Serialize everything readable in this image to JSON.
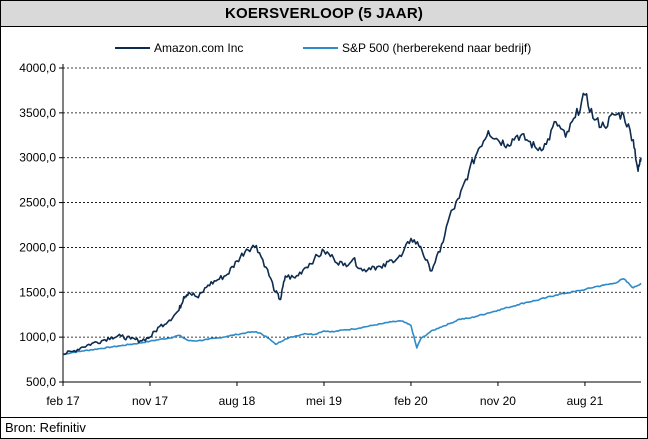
{
  "title": "KOERSVERLOOP (5 JAAR)",
  "source": "Bron: Refinitiv",
  "colors": {
    "amazon": "#0e2c4f",
    "sp500": "#2e8bc9",
    "grid": "#000000"
  },
  "chart_data": {
    "type": "line",
    "ylim": [
      500,
      4000
    ],
    "yticks": [
      "500,0",
      "1000,0",
      "1500,0",
      "2000,0",
      "2500,0",
      "3000,0",
      "3500,0",
      "4000,0"
    ],
    "ytick_values": [
      500,
      1000,
      1500,
      2000,
      2500,
      3000,
      3500,
      4000
    ],
    "xticks": [
      "feb 17",
      "nov 17",
      "aug 18",
      "mei 19",
      "feb 20",
      "nov 20",
      "aug 21"
    ],
    "xtick_months": [
      0,
      9,
      18,
      27,
      36,
      45,
      54
    ],
    "x_end_month": 59.8,
    "grid": "horizontal-dashed",
    "legend_position": "top",
    "series": [
      {
        "name": "Amazon.com Inc",
        "key": "amazon",
        "points": [
          [
            0,
            810
          ],
          [
            1,
            840
          ],
          [
            2,
            890
          ],
          [
            3,
            930
          ],
          [
            4,
            960
          ],
          [
            5,
            1000
          ],
          [
            6,
            1010
          ],
          [
            7,
            980
          ],
          [
            8,
            960
          ],
          [
            9,
            1000
          ],
          [
            10,
            1120
          ],
          [
            11,
            1190
          ],
          [
            12,
            1300
          ],
          [
            12.5,
            1450
          ],
          [
            13,
            1500
          ],
          [
            14,
            1440
          ],
          [
            15,
            1580
          ],
          [
            16,
            1640
          ],
          [
            17,
            1700
          ],
          [
            18,
            1850
          ],
          [
            19,
            1980
          ],
          [
            20,
            2020
          ],
          [
            21,
            1780
          ],
          [
            22,
            1500
          ],
          [
            22.5,
            1420
          ],
          [
            23,
            1680
          ],
          [
            24,
            1660
          ],
          [
            25,
            1770
          ],
          [
            26,
            1870
          ],
          [
            27,
            1960
          ],
          [
            28,
            1880
          ],
          [
            29,
            1800
          ],
          [
            30,
            1870
          ],
          [
            31,
            1740
          ],
          [
            32,
            1790
          ],
          [
            33,
            1770
          ],
          [
            34,
            1860
          ],
          [
            35,
            1900
          ],
          [
            36,
            2100
          ],
          [
            37,
            2010
          ],
          [
            38,
            1740
          ],
          [
            39,
            1950
          ],
          [
            40,
            2350
          ],
          [
            41,
            2550
          ],
          [
            42,
            2850
          ],
          [
            43,
            3100
          ],
          [
            44,
            3300
          ],
          [
            45,
            3200
          ],
          [
            46,
            3150
          ],
          [
            47,
            3250
          ],
          [
            48,
            3200
          ],
          [
            49,
            3100
          ],
          [
            50,
            3150
          ],
          [
            51,
            3400
          ],
          [
            52,
            3230
          ],
          [
            53,
            3450
          ],
          [
            54,
            3700
          ],
          [
            55,
            3420
          ],
          [
            56,
            3350
          ],
          [
            57,
            3480
          ],
          [
            58,
            3480
          ],
          [
            59,
            3200
          ],
          [
            59.5,
            2850
          ],
          [
            59.8,
            3000
          ]
        ]
      },
      {
        "name": "S&P 500 (herberekend naar bedrijf)",
        "key": "sp500",
        "points": [
          [
            0,
            810
          ],
          [
            1,
            830
          ],
          [
            2,
            845
          ],
          [
            3,
            860
          ],
          [
            4,
            875
          ],
          [
            5,
            890
          ],
          [
            6,
            905
          ],
          [
            7,
            920
          ],
          [
            8,
            935
          ],
          [
            9,
            955
          ],
          [
            10,
            975
          ],
          [
            11,
            990
          ],
          [
            12,
            1020
          ],
          [
            13,
            960
          ],
          [
            14,
            960
          ],
          [
            15,
            975
          ],
          [
            16,
            990
          ],
          [
            17,
            1010
          ],
          [
            18,
            1030
          ],
          [
            19,
            1050
          ],
          [
            20,
            1060
          ],
          [
            21,
            1010
          ],
          [
            22,
            920
          ],
          [
            23,
            980
          ],
          [
            24,
            1010
          ],
          [
            25,
            1040
          ],
          [
            26,
            1030
          ],
          [
            27,
            1070
          ],
          [
            28,
            1060
          ],
          [
            29,
            1080
          ],
          [
            30,
            1090
          ],
          [
            31,
            1110
          ],
          [
            32,
            1130
          ],
          [
            33,
            1150
          ],
          [
            34,
            1170
          ],
          [
            35,
            1180
          ],
          [
            36,
            1130
          ],
          [
            36.6,
            880
          ],
          [
            37,
            980
          ],
          [
            38,
            1060
          ],
          [
            39,
            1110
          ],
          [
            40,
            1150
          ],
          [
            41,
            1200
          ],
          [
            42,
            1210
          ],
          [
            43,
            1240
          ],
          [
            44,
            1270
          ],
          [
            45,
            1300
          ],
          [
            46,
            1330
          ],
          [
            47,
            1360
          ],
          [
            48,
            1390
          ],
          [
            49,
            1410
          ],
          [
            50,
            1440
          ],
          [
            51,
            1470
          ],
          [
            52,
            1490
          ],
          [
            53,
            1510
          ],
          [
            54,
            1530
          ],
          [
            55,
            1560
          ],
          [
            56,
            1580
          ],
          [
            57,
            1600
          ],
          [
            58,
            1650
          ],
          [
            59,
            1550
          ],
          [
            59.8,
            1600
          ]
        ]
      }
    ]
  }
}
